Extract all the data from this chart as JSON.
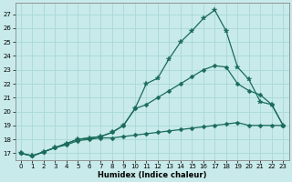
{
  "xlabel": "Humidex (Indice chaleur)",
  "bg_color": "#c8eaea",
  "grid_color": "#a8d8d8",
  "line_color": "#1a6b5a",
  "xlim": [
    -0.5,
    23.5
  ],
  "ylim": [
    16.5,
    27.8
  ],
  "x_ticks": [
    0,
    1,
    2,
    3,
    4,
    5,
    6,
    7,
    8,
    9,
    10,
    11,
    12,
    13,
    14,
    15,
    16,
    17,
    18,
    19,
    20,
    21,
    22,
    23
  ],
  "y_ticks": [
    17,
    18,
    19,
    20,
    21,
    22,
    23,
    24,
    25,
    26,
    27
  ],
  "line_flat_x": [
    0,
    1,
    2,
    3,
    4,
    5,
    6,
    7,
    8,
    9,
    10,
    11,
    12,
    13,
    14,
    15,
    16,
    17,
    18,
    19,
    20,
    21,
    22,
    23
  ],
  "line_flat_y": [
    17.0,
    16.8,
    17.1,
    17.4,
    17.6,
    17.9,
    18.0,
    18.1,
    18.1,
    18.2,
    18.3,
    18.4,
    18.5,
    18.6,
    18.7,
    18.8,
    18.9,
    19.0,
    19.1,
    19.2,
    19.0,
    19.0,
    19.0,
    19.0
  ],
  "line_mid_x": [
    0,
    1,
    2,
    3,
    4,
    5,
    6,
    7,
    8,
    9,
    10,
    11,
    12,
    13,
    14,
    15,
    16,
    17,
    18,
    19,
    20,
    21,
    22,
    23
  ],
  "line_mid_y": [
    17.0,
    16.8,
    17.1,
    17.4,
    17.7,
    18.0,
    18.1,
    18.2,
    18.5,
    19.0,
    20.2,
    20.5,
    21.0,
    21.5,
    22.0,
    22.5,
    23.0,
    23.3,
    23.2,
    22.0,
    21.5,
    21.2,
    20.5,
    19.0
  ],
  "line_top_x": [
    0,
    1,
    2,
    3,
    4,
    5,
    6,
    7,
    8,
    9,
    10,
    11,
    12,
    13,
    14,
    15,
    16,
    17,
    18,
    19,
    20,
    21,
    22,
    23
  ],
  "line_top_y": [
    17.0,
    16.8,
    17.1,
    17.4,
    17.7,
    18.0,
    18.1,
    18.2,
    18.5,
    19.0,
    20.2,
    22.0,
    22.4,
    23.8,
    25.0,
    25.8,
    26.7,
    27.3,
    25.8,
    23.2,
    22.3,
    20.7,
    20.5,
    19.0
  ],
  "lw": 0.9,
  "ms_diamond": 2.5,
  "ms_star": 4.0
}
